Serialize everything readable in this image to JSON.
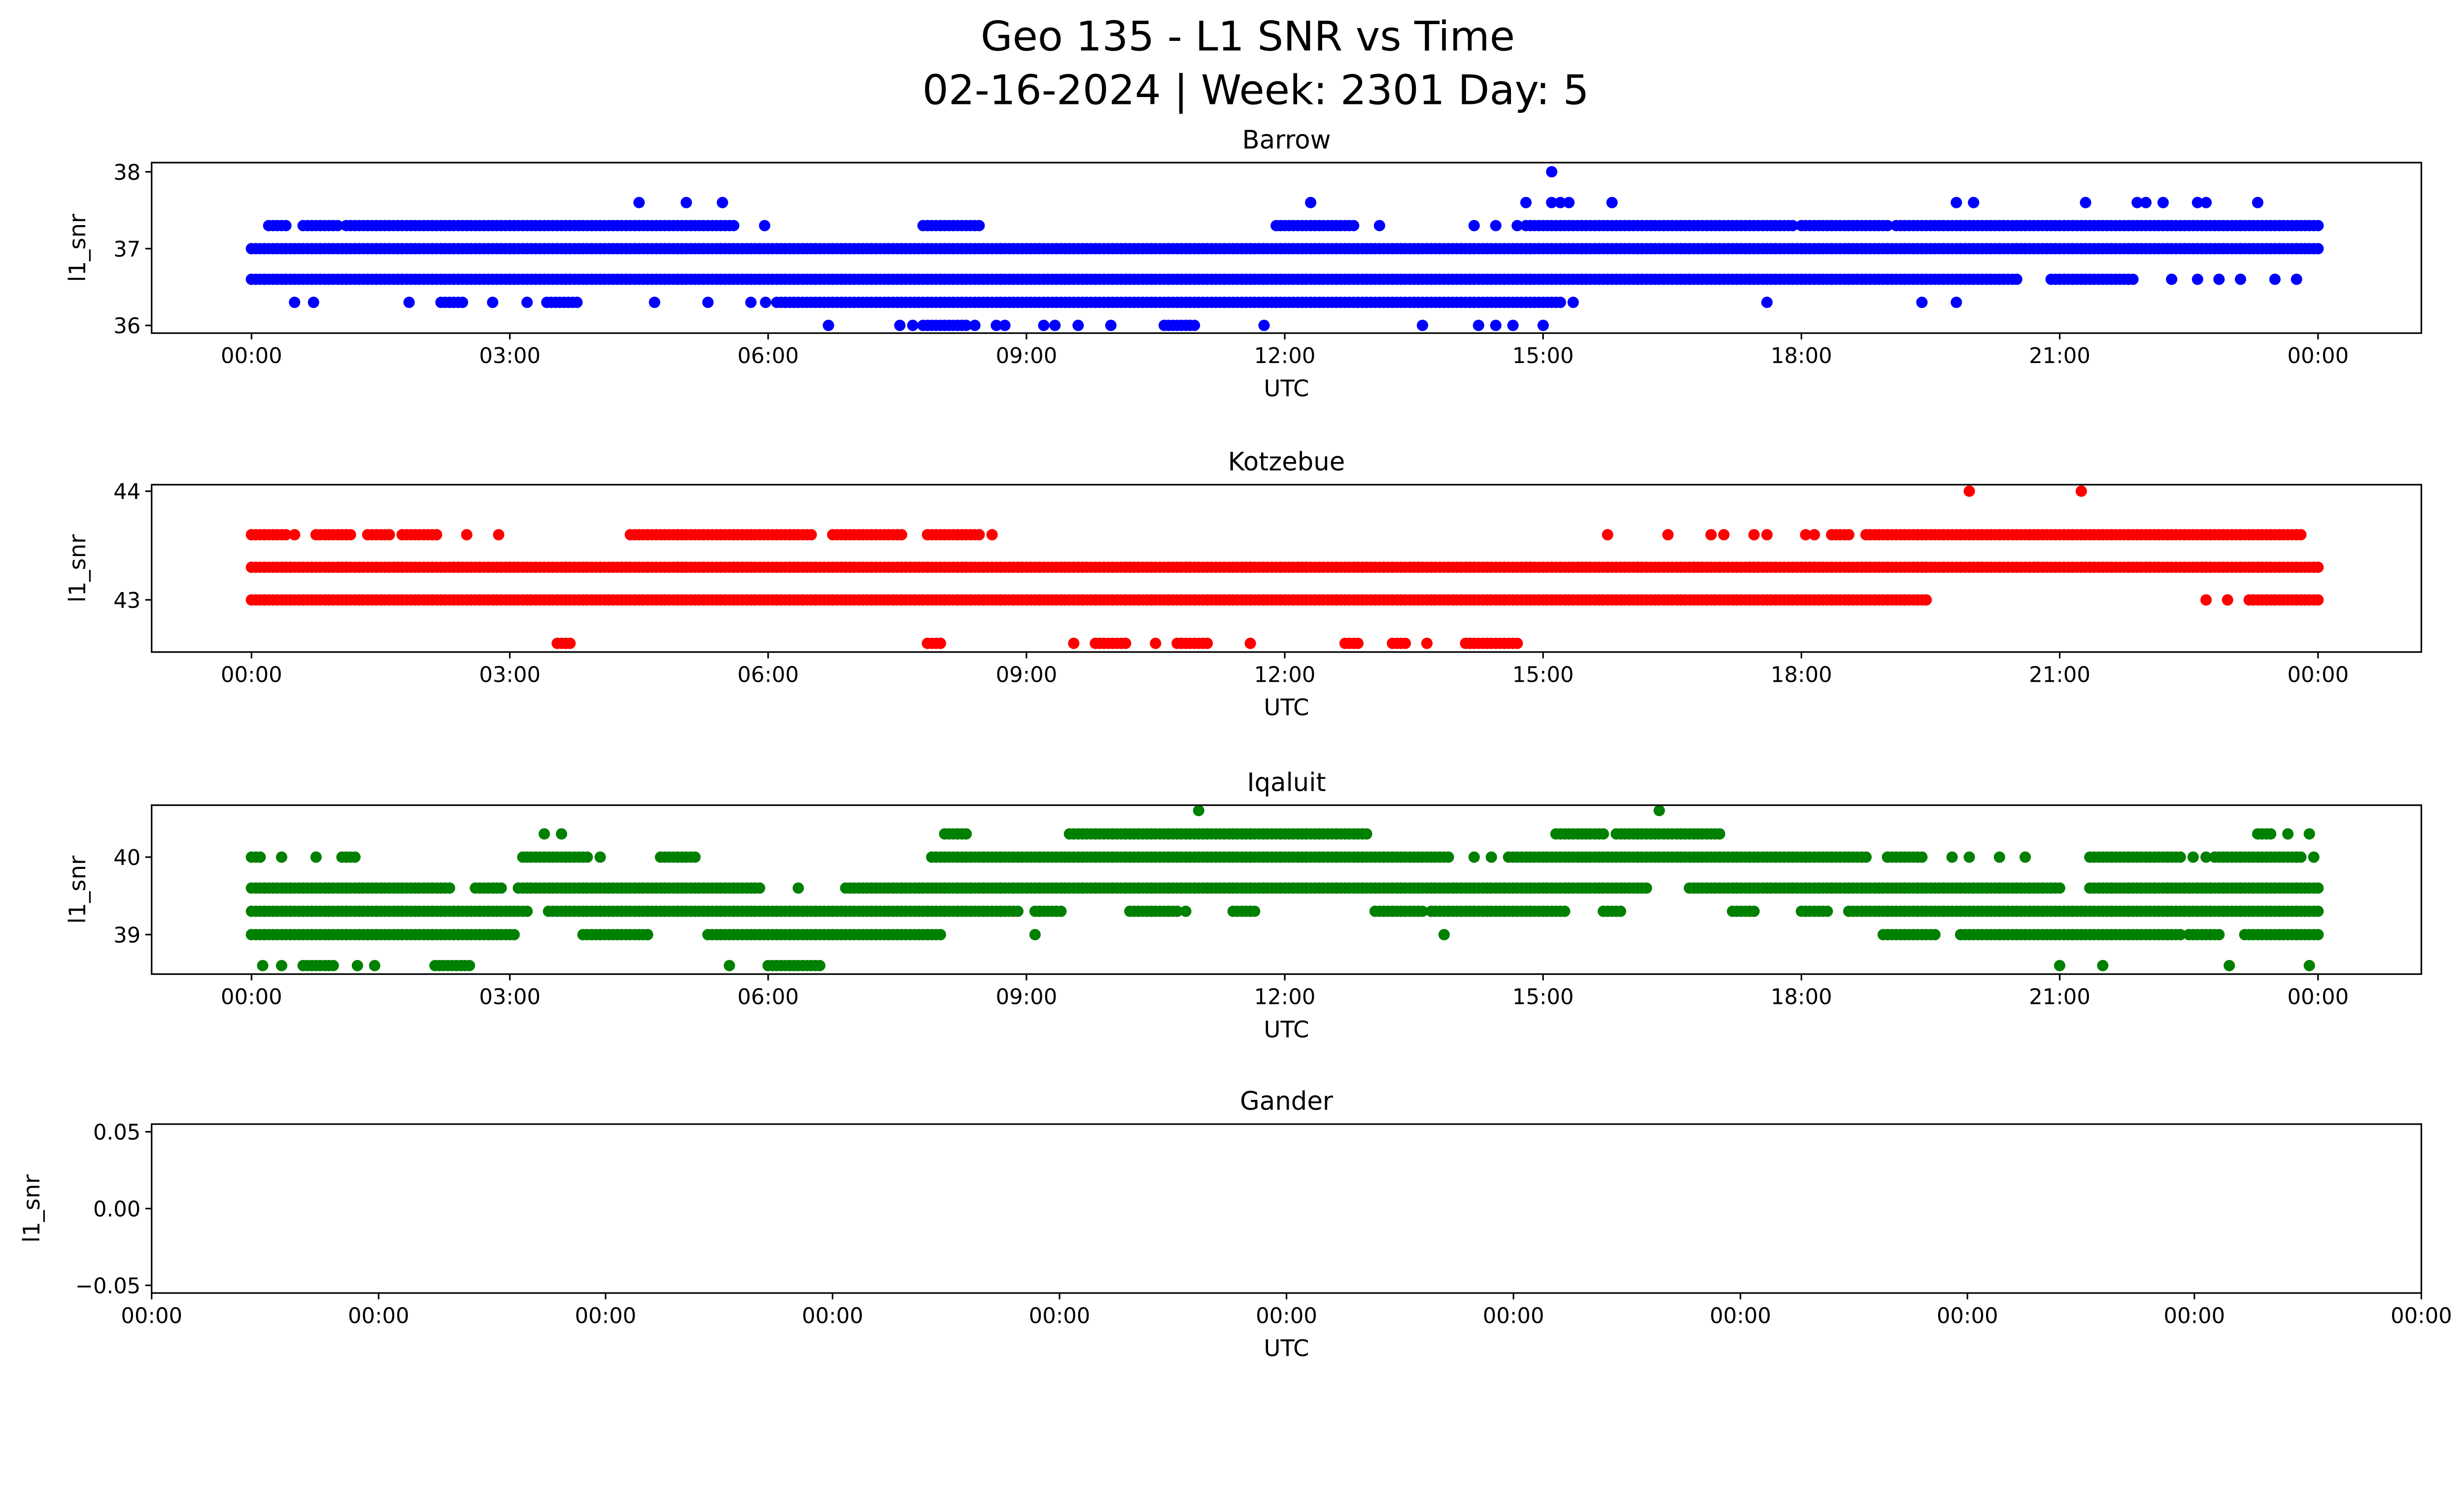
{
  "chart_data": {
    "type": "scatter",
    "title": "Geo 135 - L1 SNR vs Time",
    "subtitle": "02-16-2024 | Week: 2301 Day: 5",
    "panels": [
      {
        "title": "Barrow",
        "xlabel": "UTC",
        "ylabel": "l1_snr",
        "color": "#0000ff",
        "xlim": [
          -1.16,
          25.2
        ],
        "ylim": [
          35.9,
          38.12
        ],
        "xticks": [
          0,
          3,
          6,
          9,
          12,
          15,
          18,
          21,
          24
        ],
        "xtick_labels": [
          "00:00",
          "03:00",
          "06:00",
          "09:00",
          "12:00",
          "15:00",
          "18:00",
          "21:00",
          "00:00"
        ],
        "yticks": [
          36,
          37,
          38
        ],
        "ytick_labels": [
          "36",
          "37",
          "38"
        ],
        "levels": [
          {
            "y": 37.0,
            "segments": [
              [
                0,
                24
              ]
            ],
            "points": []
          },
          {
            "y": 36.6,
            "segments": [
              [
                0,
                20.5
              ],
              [
                20.9,
                21.85
              ]
            ],
            "points": [
              22.3,
              22.6,
              22.85,
              23.1,
              23.5,
              23.75
            ]
          },
          {
            "y": 37.3,
            "segments": [
              [
                0.2,
                0.4
              ],
              [
                0.6,
                1.0
              ],
              [
                1.1,
                5.6
              ],
              [
                7.8,
                8.45
              ],
              [
                11.9,
                12.8
              ],
              [
                14.8,
                17.9
              ],
              [
                18.0,
                19.0
              ],
              [
                19.1,
                24
              ]
            ],
            "points": [
              5.96,
              13.1,
              14.2,
              14.45,
              14.7
            ]
          },
          {
            "y": 37.6,
            "segments": [],
            "points": [
              4.5,
              5.05,
              5.47,
              12.3,
              14.8,
              15.1,
              15.2,
              15.3,
              15.8,
              19.8,
              20.0,
              21.3,
              21.9,
              22.0,
              22.2,
              22.6,
              22.7,
              23.3
            ]
          },
          {
            "y": 38.0,
            "segments": [],
            "points": [
              15.1
            ]
          },
          {
            "y": 36.3,
            "segments": [
              [
                2.2,
                2.46
              ],
              [
                3.43,
                3.8
              ],
              [
                6.1,
                11.9
              ],
              [
                11.9,
                15.2
              ]
            ],
            "points": [
              0.5,
              0.72,
              1.83,
              2.8,
              3.2,
              4.68,
              5.3,
              5.8,
              5.97,
              15.35,
              17.6,
              19.4,
              19.8
            ]
          },
          {
            "y": 36.0,
            "segments": [
              [
                7.8,
                8.3
              ],
              [
                10.6,
                10.95
              ]
            ],
            "points": [
              6.7,
              7.53,
              7.68,
              8.4,
              8.65,
              8.75,
              9.2,
              9.33,
              9.6,
              9.98,
              11.76,
              13.6,
              14.25,
              14.45,
              14.65,
              15.0
            ]
          }
        ]
      },
      {
        "title": "Kotzebue",
        "xlabel": "UTC",
        "ylabel": "l1_snr",
        "color": "#ff0000",
        "xlim": [
          -1.16,
          25.2
        ],
        "ylim": [
          42.52,
          44.06
        ],
        "xticks": [
          0,
          3,
          6,
          9,
          12,
          15,
          18,
          21,
          24
        ],
        "xtick_labels": [
          "00:00",
          "03:00",
          "06:00",
          "09:00",
          "12:00",
          "15:00",
          "18:00",
          "21:00",
          "00:00"
        ],
        "yticks": [
          43,
          44
        ],
        "ytick_labels": [
          "43",
          "44"
        ],
        "levels": [
          {
            "y": 43.3,
            "segments": [
              [
                0,
                24
              ]
            ],
            "points": []
          },
          {
            "y": 43.0,
            "segments": [
              [
                0,
                19.47
              ],
              [
                23.2,
                24
              ]
            ],
            "points": [
              22.7,
              22.95
            ]
          },
          {
            "y": 43.6,
            "segments": [
              [
                0,
                0.4
              ],
              [
                0.75,
                1.15
              ],
              [
                1.35,
                1.6
              ],
              [
                1.75,
                2.15
              ],
              [
                4.4,
                6.5
              ],
              [
                6.75,
                7.55
              ],
              [
                7.85,
                8.45
              ],
              [
                18.35,
                18.55
              ],
              [
                18.75,
                23.8
              ]
            ],
            "points": [
              0.5,
              2.5,
              2.87,
              8.6,
              15.75,
              16.45,
              16.95,
              17.1,
              17.45,
              17.6,
              18.05,
              18.15
            ]
          },
          {
            "y": 44.0,
            "segments": [],
            "points": [
              19.95,
              21.25
            ]
          },
          {
            "y": 42.6,
            "segments": [
              [
                3.55,
                3.7
              ],
              [
                7.85,
                8.0
              ],
              [
                9.8,
                10.15
              ],
              [
                10.75,
                11.1
              ],
              [
                12.7,
                12.85
              ],
              [
                13.25,
                13.4
              ],
              [
                14.1,
                14.7
              ]
            ],
            "points": [
              9.55,
              10.5,
              11.6,
              13.65
            ]
          }
        ]
      },
      {
        "title": "Iqaluit",
        "xlabel": "UTC",
        "ylabel": "l1_snr",
        "color": "#008000",
        "xlim": [
          -1.16,
          25.2
        ],
        "ylim": [
          38.49,
          40.67
        ],
        "xticks": [
          0,
          3,
          6,
          9,
          12,
          15,
          18,
          21,
          24
        ],
        "xtick_labels": [
          "00:00",
          "03:00",
          "06:00",
          "09:00",
          "12:00",
          "15:00",
          "18:00",
          "21:00",
          "00:00"
        ],
        "yticks": [
          39,
          40
        ],
        "ytick_labels": [
          "39",
          "40"
        ],
        "levels": [
          {
            "y": 39.6,
            "segments": [
              [
                0,
                2.3
              ],
              [
                2.6,
                2.9
              ],
              [
                3.1,
                5.9
              ],
              [
                6.9,
                16.2
              ],
              [
                16.7,
                21.0
              ],
              [
                21.35,
                24
              ]
            ],
            "points": [
              6.35
            ]
          },
          {
            "y": 39.3,
            "segments": [
              [
                0,
                3.23
              ],
              [
                3.45,
                8.9
              ],
              [
                9.1,
                9.4
              ],
              [
                10.2,
                10.75
              ],
              [
                11.4,
                11.65
              ],
              [
                13.05,
                13.6
              ],
              [
                13.7,
                15.25
              ],
              [
                15.7,
                15.9
              ],
              [
                17.2,
                17.45
              ],
              [
                18.0,
                18.3
              ],
              [
                18.55,
                24
              ]
            ],
            "points": [
              10.85
            ]
          },
          {
            "y": 39.0,
            "segments": [
              [
                0,
                3.05
              ],
              [
                3.85,
                4.6
              ],
              [
                5.3,
                8.0
              ],
              [
                18.95,
                19.55
              ],
              [
                19.85,
                22.4
              ],
              [
                22.5,
                22.85
              ],
              [
                23.15,
                24
              ]
            ],
            "points": [
              9.1,
              13.85
            ]
          },
          {
            "y": 38.6,
            "segments": [
              [
                0.6,
                0.95
              ],
              [
                2.13,
                2.53
              ],
              [
                6.0,
                6.6
              ]
            ],
            "points": [
              0.13,
              0.35,
              1.23,
              1.43,
              5.55,
              21.0,
              21.5,
              22.97,
              23.9
            ]
          },
          {
            "y": 40.0,
            "segments": [
              [
                0,
                0.13
              ],
              [
                1.05,
                1.23
              ],
              [
                3.15,
                3.9
              ],
              [
                4.75,
                5.15
              ],
              [
                7.9,
                13.9
              ],
              [
                14.6,
                18.75
              ],
              [
                19.0,
                19.4
              ],
              [
                21.35,
                22.4
              ],
              [
                22.8,
                23.8
              ]
            ],
            "points": [
              0.35,
              0.75,
              4.05,
              14.2,
              14.4,
              19.75,
              19.95,
              20.3,
              20.6,
              22.55,
              22.7,
              23.95
            ]
          },
          {
            "y": 40.3,
            "segments": [
              [
                8.05,
                8.3
              ],
              [
                9.5,
                12.95
              ],
              [
                15.15,
                15.7
              ],
              [
                15.85,
                17.05
              ],
              [
                23.3,
                23.45
              ]
            ],
            "points": [
              3.4,
              3.6,
              23.65,
              23.9
            ]
          },
          {
            "y": 40.6,
            "segments": [],
            "points": [
              11.0,
              16.35
            ]
          }
        ]
      },
      {
        "title": "Gander",
        "xlabel": "UTC",
        "ylabel": "l1_snr",
        "color": "#008000",
        "xlim": [
          0,
          10
        ],
        "ylim": [
          -0.055,
          0.055
        ],
        "xticks": [
          0,
          1,
          2,
          3,
          4,
          5,
          6,
          7,
          8,
          9,
          10
        ],
        "xtick_labels": [
          "00:00",
          "00:00",
          "00:00",
          "00:00",
          "00:00",
          "00:00",
          "00:00",
          "00:00",
          "00:00",
          "00:00",
          "00:00"
        ],
        "yticks": [
          -0.05,
          0,
          0.05
        ],
        "ytick_labels": [
          "−0.05",
          "0.00",
          "0.05"
        ],
        "levels": []
      }
    ]
  }
}
